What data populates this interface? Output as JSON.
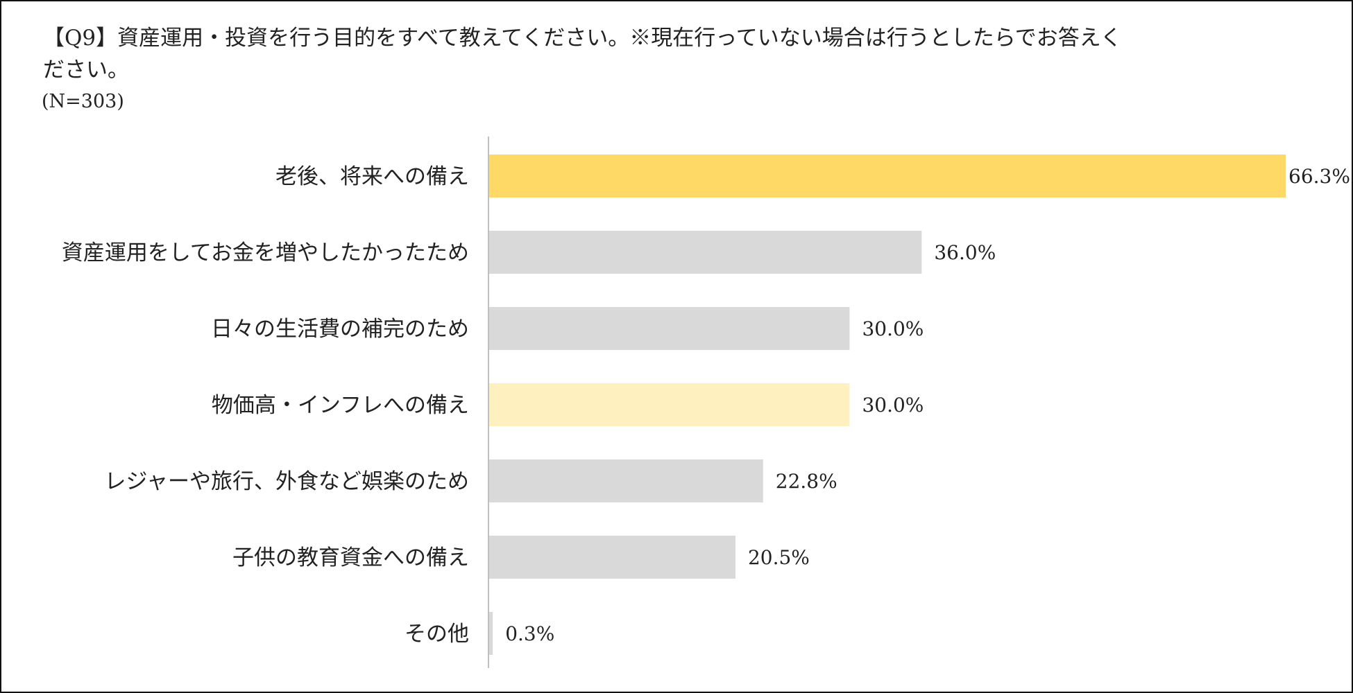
{
  "header": {
    "title": "【Q9】資産運用・投資を行う目的をすべて教えてください。※現在行っていない場合は行うとしたらでお答えください。",
    "sample_size": "(N=303)"
  },
  "colors": {
    "highlight_strong": "#FFD966",
    "highlight_light": "#FFF0C0",
    "default_bar": "#D9D9D9",
    "axis": "#BFBFBF"
  },
  "chart_data": {
    "type": "bar",
    "orientation": "horizontal",
    "categories": [
      "老後、将来への備え",
      "資産運用をしてお金を増やしたかったため",
      "日々の生活費の補完のため",
      "物価高・インフレへの備え",
      "レジャーや旅行、外食など娯楽のため",
      "子供の教育資金への備え",
      "その他"
    ],
    "values": [
      66.3,
      36.0,
      30.0,
      30.0,
      22.8,
      20.5,
      0.3
    ],
    "value_labels": [
      "66.3%",
      "36.0%",
      "30.0%",
      "30.0%",
      "22.8%",
      "20.5%",
      "0.3%"
    ],
    "bar_colors": [
      "#FFD966",
      "#D9D9D9",
      "#D9D9D9",
      "#FFF0C0",
      "#D9D9D9",
      "#D9D9D9",
      "#D9D9D9"
    ],
    "unit": "%",
    "xlim": [
      0,
      66.3
    ],
    "grid": false,
    "legend": "none"
  }
}
